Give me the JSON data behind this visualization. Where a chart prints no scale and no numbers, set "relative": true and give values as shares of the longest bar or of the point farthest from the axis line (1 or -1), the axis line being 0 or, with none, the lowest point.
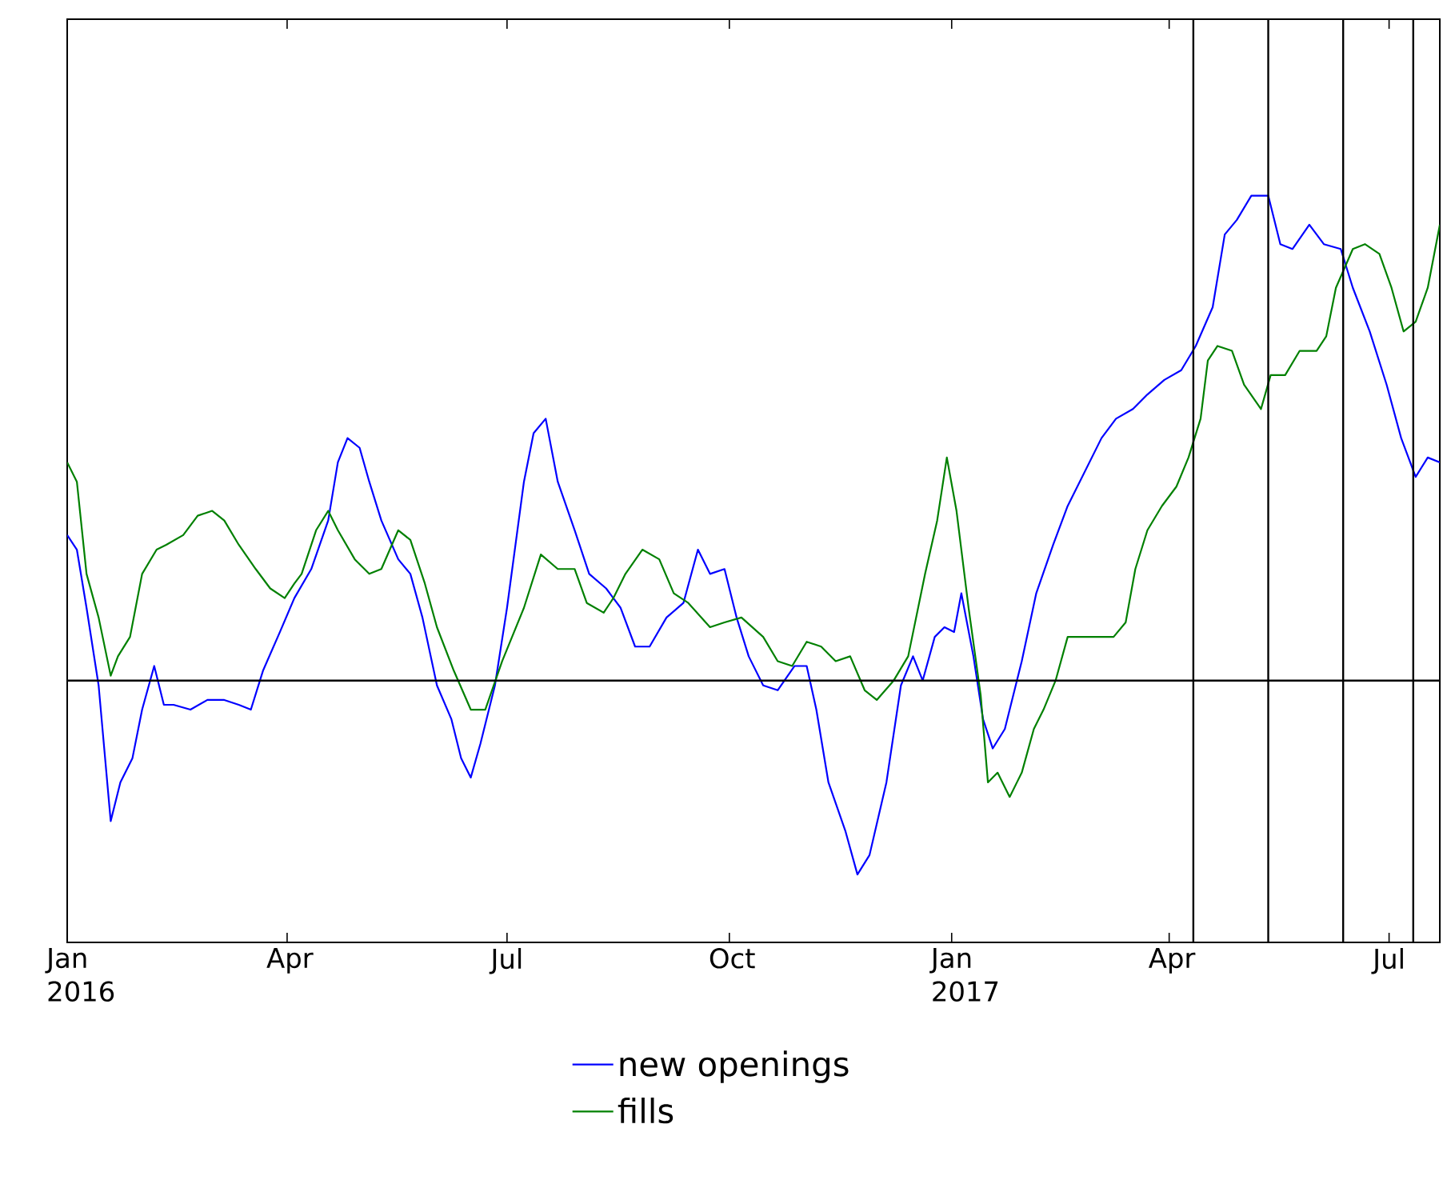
{
  "chart_data": {
    "type": "line",
    "relative": true,
    "legend": "bottom",
    "xlim": [
      "2016-01-01",
      "2017-07-22"
    ],
    "xticks": [
      {
        "value": "2016-01-01",
        "label": "Jan 2016"
      },
      {
        "value": "2016-04-01",
        "label": "Apr"
      },
      {
        "value": "2016-07-01",
        "label": "Jul"
      },
      {
        "value": "2016-10-01",
        "label": "Oct"
      },
      {
        "value": "2017-01-01",
        "label": "Jan 2017"
      },
      {
        "value": "2017-04-01",
        "label": "Apr"
      },
      {
        "value": "2017-07-01",
        "label": "Jul"
      }
    ],
    "ref_lines": [
      {
        "axis": "x",
        "value": "2017-04-11",
        "color": "#000000"
      },
      {
        "axis": "x",
        "value": "2017-05-12",
        "color": "#000000"
      },
      {
        "axis": "x",
        "value": "2017-06-12",
        "color": "#000000"
      },
      {
        "axis": "x",
        "value": "2017-07-11",
        "color": "#000000"
      }
    ],
    "series": [
      {
        "name": "new openings",
        "color": "#0000ff",
        "x": [
          "2016-01-01",
          "2016-01-05",
          "2016-01-09",
          "2016-01-14",
          "2016-01-19",
          "2016-01-23",
          "2016-01-28",
          "2016-02-01",
          "2016-02-06",
          "2016-02-10",
          "2016-02-14",
          "2016-02-21",
          "2016-02-28",
          "2016-03-06",
          "2016-03-12",
          "2016-03-17",
          "2016-03-22",
          "2016-03-29",
          "2016-04-04",
          "2016-04-11",
          "2016-04-18",
          "2016-04-22",
          "2016-04-26",
          "2016-05-01",
          "2016-05-05",
          "2016-05-10",
          "2016-05-17",
          "2016-05-22",
          "2016-05-27",
          "2016-06-02",
          "2016-06-08",
          "2016-06-12",
          "2016-06-16",
          "2016-06-20",
          "2016-06-26",
          "2016-07-01",
          "2016-07-08",
          "2016-07-12",
          "2016-07-17",
          "2016-07-22",
          "2016-07-29",
          "2016-08-04",
          "2016-08-11",
          "2016-08-17",
          "2016-08-23",
          "2016-08-29",
          "2016-09-05",
          "2016-09-12",
          "2016-09-18",
          "2016-09-23",
          "2016-09-29",
          "2016-10-04",
          "2016-10-09",
          "2016-10-15",
          "2016-10-21",
          "2016-10-28",
          "2016-11-02",
          "2016-11-06",
          "2016-11-11",
          "2016-11-18",
          "2016-11-23",
          "2016-11-28",
          "2016-12-05",
          "2016-12-11",
          "2016-12-16",
          "2016-12-20",
          "2016-12-25",
          "2016-12-29",
          "2017-01-02",
          "2017-01-05",
          "2017-01-10",
          "2017-01-14",
          "2017-01-18",
          "2017-01-23",
          "2017-01-30",
          "2017-02-05",
          "2017-02-12",
          "2017-02-18",
          "2017-02-25",
          "2017-03-04",
          "2017-03-10",
          "2017-03-17",
          "2017-03-23",
          "2017-03-30",
          "2017-04-06",
          "2017-04-12",
          "2017-04-19",
          "2017-04-24",
          "2017-04-29",
          "2017-05-05",
          "2017-05-12",
          "2017-05-17",
          "2017-05-22",
          "2017-05-29",
          "2017-06-04",
          "2017-06-11",
          "2017-06-16",
          "2017-06-23",
          "2017-06-30",
          "2017-07-06",
          "2017-07-12",
          "2017-07-17",
          "2017-07-22"
        ],
        "values": [
          0.3,
          0.27,
          0.15,
          -0.01,
          -0.29,
          -0.21,
          -0.16,
          -0.06,
          0.03,
          -0.05,
          -0.05,
          -0.06,
          -0.04,
          -0.04,
          -0.05,
          -0.06,
          0.02,
          0.1,
          0.17,
          0.23,
          0.33,
          0.45,
          0.5,
          0.48,
          0.41,
          0.33,
          0.25,
          0.22,
          0.13,
          -0.01,
          -0.08,
          -0.16,
          -0.2,
          -0.13,
          -0.01,
          0.15,
          0.41,
          0.51,
          0.54,
          0.41,
          0.31,
          0.22,
          0.19,
          0.15,
          0.07,
          0.07,
          0.13,
          0.16,
          0.27,
          0.22,
          0.23,
          0.13,
          0.05,
          -0.01,
          -0.02,
          0.03,
          0.03,
          -0.06,
          -0.21,
          -0.31,
          -0.4,
          -0.36,
          -0.21,
          -0.01,
          0.05,
          0.0,
          0.09,
          0.11,
          0.1,
          0.18,
          0.05,
          -0.08,
          -0.14,
          -0.1,
          0.04,
          0.18,
          0.28,
          0.36,
          0.43,
          0.5,
          0.54,
          0.56,
          0.59,
          0.62,
          0.64,
          0.69,
          0.77,
          0.92,
          0.95,
          1,
          1,
          0.9,
          0.89,
          0.94,
          0.9,
          0.89,
          0.81,
          0.72,
          0.61,
          0.5,
          0.42,
          0.46,
          0.45
        ]
      },
      {
        "name": "fills",
        "color": "#008000",
        "x": [
          "2016-01-01",
          "2016-01-05",
          "2016-01-09",
          "2016-01-14",
          "2016-01-19",
          "2016-01-22",
          "2016-01-27",
          "2016-02-01",
          "2016-02-07",
          "2016-02-11",
          "2016-02-18",
          "2016-02-24",
          "2016-03-01",
          "2016-03-06",
          "2016-03-12",
          "2016-03-19",
          "2016-03-25",
          "2016-03-31",
          "2016-04-04",
          "2016-04-07",
          "2016-04-13",
          "2016-04-18",
          "2016-04-22",
          "2016-04-29",
          "2016-05-05",
          "2016-05-10",
          "2016-05-17",
          "2016-05-22",
          "2016-05-28",
          "2016-06-02",
          "2016-06-09",
          "2016-06-16",
          "2016-06-22",
          "2016-06-29",
          "2016-07-08",
          "2016-07-15",
          "2016-07-22",
          "2016-07-29",
          "2016-08-03",
          "2016-08-10",
          "2016-08-14",
          "2016-08-19",
          "2016-08-26",
          "2016-09-02",
          "2016-09-08",
          "2016-09-14",
          "2016-09-23",
          "2016-09-29",
          "2016-10-06",
          "2016-10-15",
          "2016-10-21",
          "2016-10-27",
          "2016-11-02",
          "2016-11-08",
          "2016-11-14",
          "2016-11-20",
          "2016-11-26",
          "2016-12-01",
          "2016-12-08",
          "2016-12-14",
          "2016-12-21",
          "2016-12-26",
          "2016-12-30",
          "2017-01-03",
          "2017-01-08",
          "2017-01-13",
          "2017-01-16",
          "2017-01-20",
          "2017-01-25",
          "2017-01-30",
          "2017-02-04",
          "2017-02-08",
          "2017-02-13",
          "2017-02-18",
          "2017-02-25",
          "2017-03-04",
          "2017-03-09",
          "2017-03-14",
          "2017-03-18",
          "2017-03-23",
          "2017-03-29",
          "2017-04-04",
          "2017-04-09",
          "2017-04-14",
          "2017-04-17",
          "2017-04-21",
          "2017-04-27",
          "2017-05-02",
          "2017-05-09",
          "2017-05-13",
          "2017-05-19",
          "2017-05-25",
          "2017-06-01",
          "2017-06-05",
          "2017-06-09",
          "2017-06-16",
          "2017-06-21",
          "2017-06-27",
          "2017-07-02",
          "2017-07-07",
          "2017-07-12",
          "2017-07-17",
          "2017-07-22"
        ],
        "values": [
          0.45,
          0.41,
          0.22,
          0.13,
          0.01,
          0.05,
          0.09,
          0.22,
          0.27,
          0.28,
          0.3,
          0.34,
          0.35,
          0.33,
          0.28,
          0.23,
          0.19,
          0.17,
          0.2,
          0.22,
          0.31,
          0.35,
          0.31,
          0.25,
          0.22,
          0.23,
          0.31,
          0.29,
          0.2,
          0.11,
          0.02,
          -0.06,
          -0.06,
          0.04,
          0.15,
          0.26,
          0.23,
          0.23,
          0.16,
          0.14,
          0.17,
          0.22,
          0.27,
          0.25,
          0.18,
          0.16,
          0.11,
          0.12,
          0.13,
          0.09,
          0.04,
          0.03,
          0.08,
          0.07,
          0.04,
          0.05,
          -0.02,
          -0.04,
          0.0,
          0.05,
          0.22,
          0.33,
          0.46,
          0.35,
          0.15,
          -0.03,
          -0.21,
          -0.19,
          -0.24,
          -0.19,
          -0.1,
          -0.06,
          0.0,
          0.09,
          0.09,
          0.09,
          0.09,
          0.12,
          0.23,
          0.31,
          0.36,
          0.4,
          0.46,
          0.54,
          0.66,
          0.69,
          0.68,
          0.61,
          0.56,
          0.63,
          0.63,
          0.68,
          0.68,
          0.71,
          0.81,
          0.89,
          0.9,
          0.88,
          0.81,
          0.72,
          0.74,
          0.81,
          0.94
        ]
      }
    ]
  }
}
